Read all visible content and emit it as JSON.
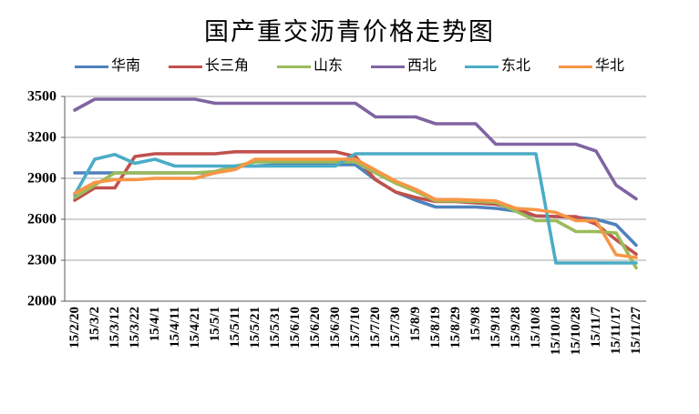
{
  "title": "国产重交沥青价格走势图",
  "chart_data": {
    "type": "line",
    "title": "国产重交沥青价格走势图",
    "legend_position": "top",
    "grid": true,
    "x_axis": {
      "categories": [
        "15/2/20",
        "15/3/2",
        "15/3/12",
        "15/3/22",
        "15/4/1",
        "15/4/11",
        "15/4/21",
        "15/5/1",
        "15/5/11",
        "15/5/21",
        "15/5/31",
        "15/6/10",
        "15/6/20",
        "15/6/30",
        "15/7/10",
        "15/7/20",
        "15/7/30",
        "15/8/9",
        "15/8/19",
        "15/8/29",
        "15/9/8",
        "15/9/18",
        "15/9/28",
        "15/10/8",
        "15/10/18",
        "15/10/28",
        "15/11/7",
        "15/11/17",
        "15/11/27"
      ]
    },
    "y_axis": {
      "min": 2000,
      "max": 3500,
      "ticks": [
        3500,
        3200,
        2900,
        2600,
        2300,
        2000
      ]
    },
    "series": [
      {
        "key": "huanan",
        "name": "华南",
        "color": "#4F81BD",
        "values": [
          2940,
          2940,
          2940,
          2940,
          2940,
          2940,
          2940,
          2940,
          2990,
          2990,
          3000,
          3000,
          3000,
          3000,
          3000,
          2890,
          2800,
          2740,
          2690,
          2690,
          2690,
          2680,
          2660,
          2625,
          2620,
          2615,
          2600,
          2560,
          2410
        ]
      },
      {
        "key": "changsanjiao",
        "name": "长三角",
        "color": "#C0504D",
        "values": [
          2740,
          2830,
          2830,
          3060,
          3080,
          3080,
          3080,
          3080,
          3095,
          3095,
          3095,
          3095,
          3095,
          3095,
          3060,
          2890,
          2800,
          2760,
          2730,
          2730,
          2720,
          2710,
          2680,
          2625,
          2620,
          2620,
          2565,
          2450,
          2345
        ]
      },
      {
        "key": "shandong",
        "name": "山东",
        "color": "#9BBB59",
        "values": [
          2760,
          2850,
          2940,
          2940,
          2940,
          2940,
          2940,
          2950,
          2990,
          3020,
          3020,
          3020,
          3020,
          3020,
          3020,
          2940,
          2865,
          2805,
          2735,
          2735,
          2730,
          2725,
          2660,
          2590,
          2590,
          2510,
          2510,
          2500,
          2245
        ]
      },
      {
        "key": "xibei",
        "name": "西北",
        "color": "#8064A2",
        "values": [
          3400,
          3480,
          3480,
          3480,
          3480,
          3480,
          3480,
          3450,
          3450,
          3450,
          3450,
          3450,
          3450,
          3450,
          3450,
          3350,
          3350,
          3350,
          3300,
          3300,
          3300,
          3150,
          3150,
          3150,
          3150,
          3150,
          3100,
          2850,
          2750
        ]
      },
      {
        "key": "dongbei",
        "name": "东北",
        "color": "#4BACC6",
        "values": [
          2780,
          3040,
          3075,
          3010,
          3040,
          2990,
          2990,
          2990,
          2990,
          2990,
          2990,
          2990,
          2990,
          2990,
          3080,
          3080,
          3080,
          3080,
          3080,
          3080,
          3080,
          3080,
          3080,
          3080,
          2280,
          2280,
          2280,
          2280,
          2280
        ]
      },
      {
        "key": "huabei",
        "name": "华北",
        "color": "#F79646",
        "values": [
          2790,
          2870,
          2890,
          2890,
          2900,
          2900,
          2900,
          2940,
          2965,
          3040,
          3040,
          3040,
          3040,
          3040,
          3040,
          2960,
          2880,
          2820,
          2745,
          2745,
          2740,
          2735,
          2680,
          2670,
          2650,
          2590,
          2590,
          2340,
          2320
        ]
      }
    ],
    "colors": {
      "gridline": "#A6A6A6",
      "axis": "#595959",
      "text": "#000000",
      "background": "#FFFFFF"
    }
  }
}
